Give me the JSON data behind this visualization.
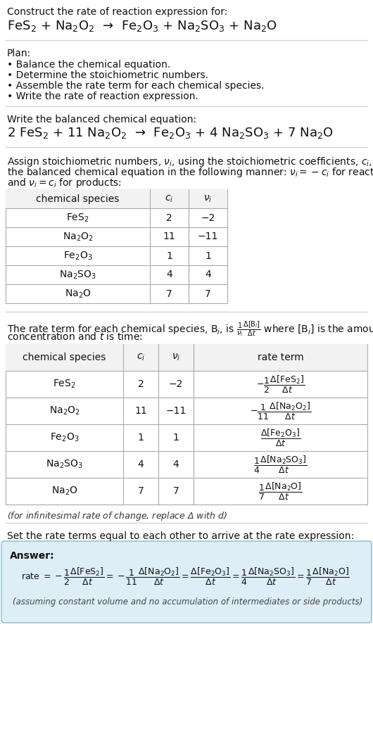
{
  "title_line1": "Construct the rate of reaction expression for:",
  "title_line2": "FeS$_2$ + Na$_2$O$_2$  →  Fe$_2$O$_3$ + Na$_2$SO$_3$ + Na$_2$O",
  "plan_header": "Plan:",
  "plan_items": [
    "• Balance the chemical equation.",
    "• Determine the stoichiometric numbers.",
    "• Assemble the rate term for each chemical species.",
    "• Write the rate of reaction expression."
  ],
  "balanced_header": "Write the balanced chemical equation:",
  "balanced_eq": "2 FeS$_2$ + 11 Na$_2$O$_2$  →  Fe$_2$O$_3$ + 4 Na$_2$SO$_3$ + 7 Na$_2$O",
  "table1_headers": [
    "chemical species",
    "$c_i$",
    "$\\nu_i$"
  ],
  "table1_data": [
    [
      "FeS$_2$",
      "2",
      "−2"
    ],
    [
      "Na$_2$O$_2$",
      "11",
      "−11"
    ],
    [
      "Fe$_2$O$_3$",
      "1",
      "1"
    ],
    [
      "Na$_2$SO$_3$",
      "4",
      "4"
    ],
    [
      "Na$_2$O",
      "7",
      "7"
    ]
  ],
  "table2_headers": [
    "chemical species",
    "$c_i$",
    "$\\nu_i$",
    "rate term"
  ],
  "table2_data": [
    [
      "FeS$_2$",
      "2",
      "−2",
      "$-\\dfrac{1}{2}\\dfrac{\\Delta[\\mathrm{FeS_2}]}{\\Delta t}$"
    ],
    [
      "Na$_2$O$_2$",
      "11",
      "−11",
      "$-\\dfrac{1}{11}\\dfrac{\\Delta[\\mathrm{Na_2O_2}]}{\\Delta t}$"
    ],
    [
      "Fe$_2$O$_3$",
      "1",
      "1",
      "$\\dfrac{\\Delta[\\mathrm{Fe_2O_3}]}{\\Delta t}$"
    ],
    [
      "Na$_2$SO$_3$",
      "4",
      "4",
      "$\\dfrac{1}{4}\\dfrac{\\Delta[\\mathrm{Na_2SO_3}]}{\\Delta t}$"
    ],
    [
      "Na$_2$O",
      "7",
      "7",
      "$\\dfrac{1}{7}\\dfrac{\\Delta[\\mathrm{Na_2O}]}{\\Delta t}$"
    ]
  ],
  "infinitesimal_note": "(for infinitesimal rate of change, replace Δ with $d$)",
  "set_equal_text": "Set the rate terms equal to each other to arrive at the rate expression:",
  "answer_label": "Answer:",
  "answer_box_color": "#ddeef6",
  "answer_border_color": "#88bbcc",
  "assuming_note": "(assuming constant volume and no accumulation of intermediates or side products)",
  "bg_color": "#ffffff",
  "table_line_color": "#aaaaaa",
  "sep_line_color": "#cccccc"
}
